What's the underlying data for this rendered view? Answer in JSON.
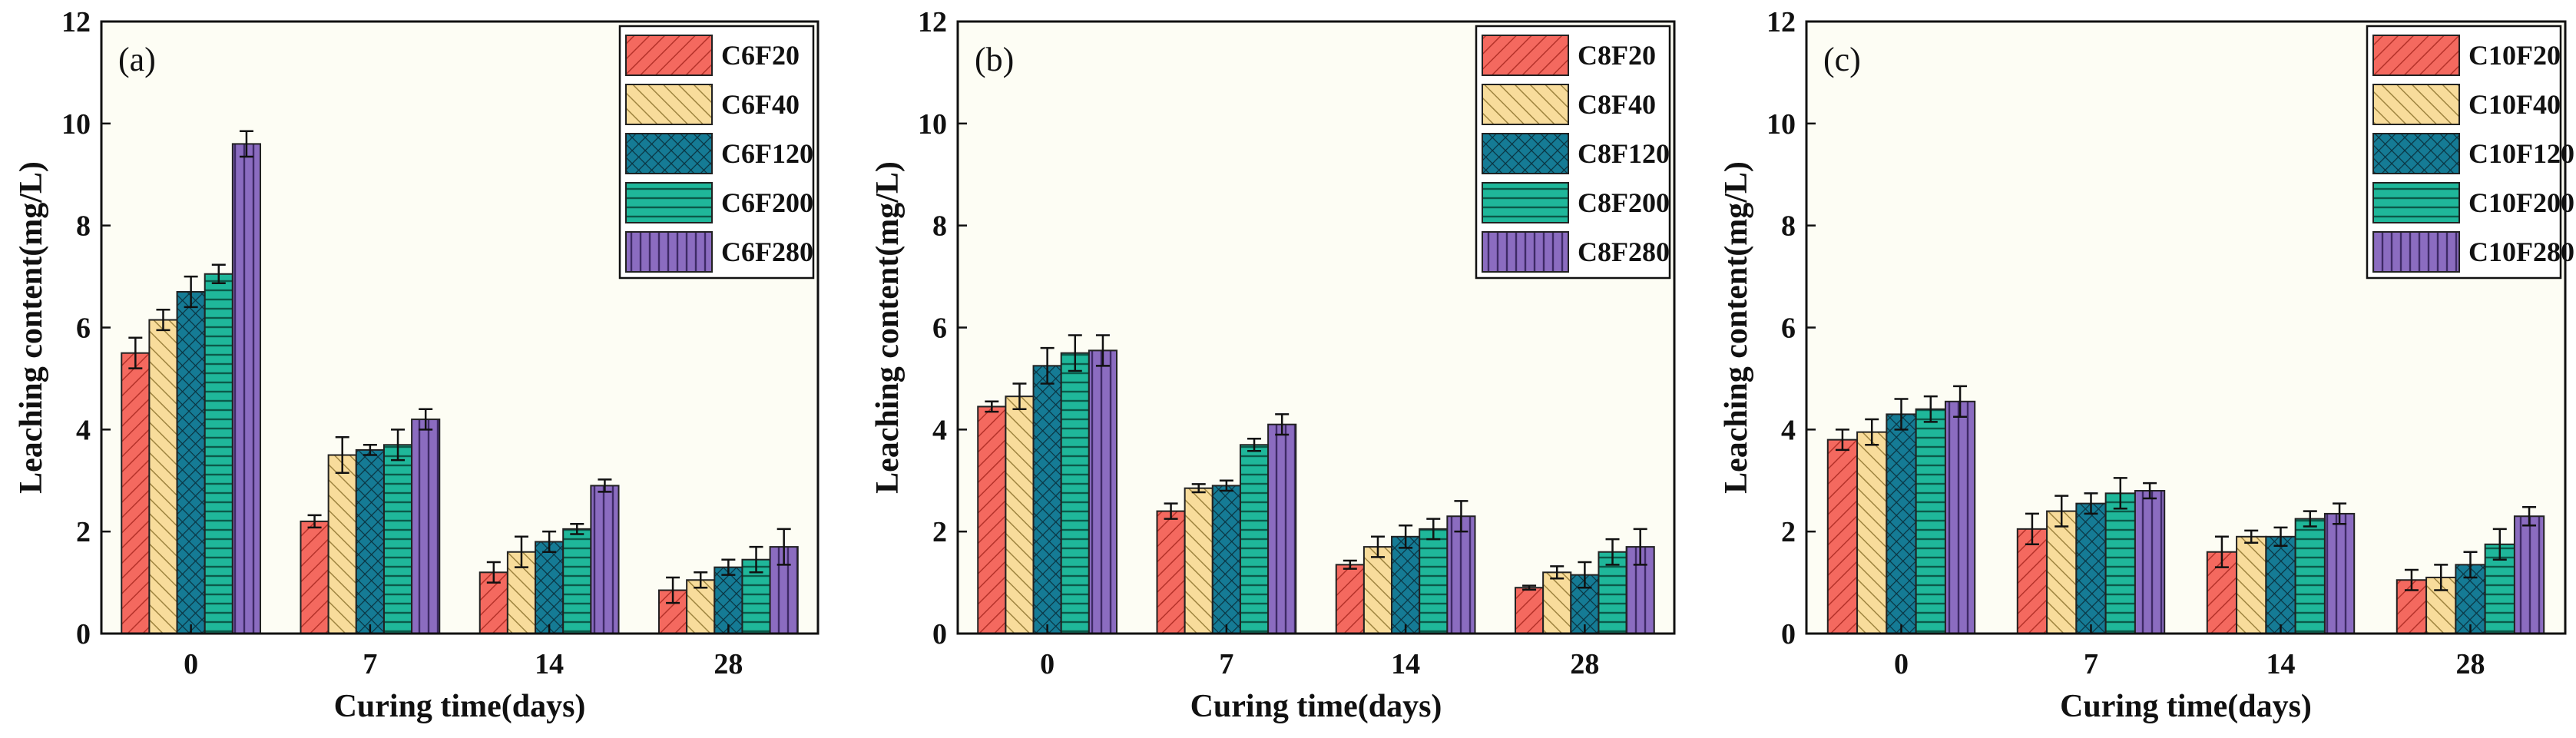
{
  "colors": {
    "background": "#fdfdf4",
    "series": [
      "#f4695f",
      "#f8dc9b",
      "#157b95",
      "#1fb79a",
      "#8b6cc0"
    ],
    "error_bar": "#111111"
  },
  "chart_data": [
    {
      "type": "bar",
      "panel_label": "(a)",
      "xlabel": "Curing time(days)",
      "ylabel": "Leaching content(mg/L)",
      "ylim": [
        0,
        12
      ],
      "yticks": [
        "0",
        "2",
        "4",
        "6",
        "8",
        "10",
        "12"
      ],
      "categories": [
        "0",
        "7",
        "14",
        "28"
      ],
      "legend_position": "top-right",
      "series": [
        {
          "name": "C6F20",
          "values": [
            5.5,
            2.2,
            1.2,
            0.85
          ],
          "errors": [
            0.3,
            0.12,
            0.2,
            0.25
          ]
        },
        {
          "name": "C6F40",
          "values": [
            6.15,
            3.5,
            1.6,
            1.05
          ],
          "errors": [
            0.2,
            0.35,
            0.3,
            0.15
          ]
        },
        {
          "name": "C6F120",
          "values": [
            6.7,
            3.6,
            1.8,
            1.3
          ],
          "errors": [
            0.3,
            0.1,
            0.2,
            0.15
          ]
        },
        {
          "name": "C6F200",
          "values": [
            7.05,
            3.7,
            2.05,
            1.45
          ],
          "errors": [
            0.18,
            0.3,
            0.1,
            0.25
          ]
        },
        {
          "name": "C6F280",
          "values": [
            9.6,
            4.2,
            2.9,
            1.7
          ],
          "errors": [
            0.25,
            0.2,
            0.12,
            0.35
          ]
        }
      ]
    },
    {
      "type": "bar",
      "panel_label": "(b)",
      "xlabel": "Curing time(days)",
      "ylabel": "Leaching content(mg/L)",
      "ylim": [
        0,
        12
      ],
      "yticks": [
        "0",
        "2",
        "4",
        "6",
        "8",
        "10",
        "12"
      ],
      "categories": [
        "0",
        "7",
        "14",
        "28"
      ],
      "legend_position": "top-right",
      "series": [
        {
          "name": "C8F20",
          "values": [
            4.45,
            2.4,
            1.35,
            0.9
          ],
          "errors": [
            0.1,
            0.15,
            0.08,
            0.04
          ]
        },
        {
          "name": "C8F40",
          "values": [
            4.65,
            2.85,
            1.7,
            1.2
          ],
          "errors": [
            0.25,
            0.08,
            0.2,
            0.12
          ]
        },
        {
          "name": "C8F120",
          "values": [
            5.25,
            2.9,
            1.9,
            1.15
          ],
          "errors": [
            0.35,
            0.1,
            0.22,
            0.25
          ]
        },
        {
          "name": "C8F200",
          "values": [
            5.5,
            3.7,
            2.05,
            1.6
          ],
          "errors": [
            0.35,
            0.12,
            0.2,
            0.25
          ]
        },
        {
          "name": "C8F280",
          "values": [
            5.55,
            4.1,
            2.3,
            1.7
          ],
          "errors": [
            0.3,
            0.2,
            0.3,
            0.35
          ]
        }
      ]
    },
    {
      "type": "bar",
      "panel_label": "(c)",
      "xlabel": "Curing time(days)",
      "ylabel": "Leaching content(mg/L)",
      "ylim": [
        0,
        12
      ],
      "yticks": [
        "0",
        "2",
        "4",
        "6",
        "8",
        "10",
        "12"
      ],
      "categories": [
        "0",
        "7",
        "14",
        "28"
      ],
      "legend_position": "top-right",
      "series": [
        {
          "name": "C10F20",
          "values": [
            3.8,
            2.05,
            1.6,
            1.05
          ],
          "errors": [
            0.2,
            0.3,
            0.3,
            0.2
          ]
        },
        {
          "name": "C10F40",
          "values": [
            3.95,
            2.4,
            1.9,
            1.1
          ],
          "errors": [
            0.25,
            0.3,
            0.12,
            0.25
          ]
        },
        {
          "name": "C10F120",
          "values": [
            4.3,
            2.55,
            1.9,
            1.35
          ],
          "errors": [
            0.3,
            0.2,
            0.18,
            0.25
          ]
        },
        {
          "name": "C10F200",
          "values": [
            4.4,
            2.75,
            2.25,
            1.75
          ],
          "errors": [
            0.25,
            0.3,
            0.15,
            0.3
          ]
        },
        {
          "name": "C10F280",
          "values": [
            4.55,
            2.8,
            2.35,
            2.3
          ],
          "errors": [
            0.3,
            0.15,
            0.2,
            0.18
          ]
        }
      ]
    }
  ]
}
